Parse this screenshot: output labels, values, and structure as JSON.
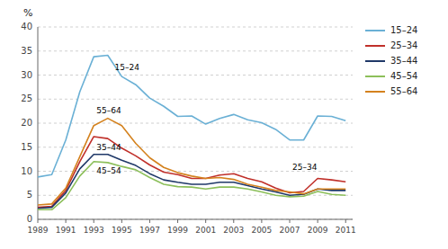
{
  "chart_data": {
    "type": "line",
    "y_label": "%",
    "x": [
      1989,
      1990,
      1991,
      1992,
      1993,
      1994,
      1995,
      1996,
      1997,
      1998,
      1999,
      2000,
      2001,
      2002,
      2003,
      2004,
      2005,
      2006,
      2007,
      2008,
      2009,
      2010,
      2011
    ],
    "series": [
      {
        "name": "15–24",
        "color": "#6ab0d5",
        "values": [
          8.8,
          9.3,
          16.5,
          26.5,
          33.8,
          34.1,
          29.7,
          28.0,
          25.2,
          23.5,
          21.4,
          21.5,
          19.8,
          21.0,
          21.8,
          20.7,
          20.1,
          18.7,
          16.5,
          16.5,
          21.5,
          21.4,
          20.5
        ]
      },
      {
        "name": "25–34",
        "color": "#c0302a",
        "values": [
          2.5,
          2.7,
          6.0,
          12.0,
          17.2,
          16.8,
          14.8,
          13.2,
          11.3,
          9.8,
          9.3,
          8.5,
          8.5,
          9.2,
          9.5,
          8.5,
          7.8,
          6.5,
          5.5,
          5.8,
          8.5,
          8.2,
          7.8
        ]
      },
      {
        "name": "35–44",
        "color": "#1f3868",
        "values": [
          2.3,
          2.5,
          5.5,
          10.5,
          13.5,
          13.5,
          12.3,
          11.2,
          9.5,
          8.2,
          7.7,
          7.3,
          7.3,
          7.7,
          7.7,
          7.0,
          6.3,
          5.7,
          5.0,
          5.2,
          6.3,
          6.0,
          6.0
        ]
      },
      {
        "name": "45–54",
        "color": "#8cbf5a",
        "values": [
          2.0,
          2.0,
          4.5,
          9.0,
          12.0,
          11.8,
          11.0,
          10.3,
          8.7,
          7.3,
          6.8,
          6.7,
          6.3,
          6.7,
          6.7,
          6.3,
          5.7,
          5.0,
          4.7,
          4.8,
          5.8,
          5.2,
          5.0
        ]
      },
      {
        "name": "55–64",
        "color": "#d4821e",
        "values": [
          3.0,
          3.2,
          6.5,
          13.0,
          19.5,
          21.0,
          19.5,
          15.8,
          12.8,
          10.8,
          9.7,
          9.0,
          8.5,
          8.7,
          8.3,
          7.3,
          6.7,
          6.0,
          5.7,
          5.3,
          6.3,
          6.3,
          6.3
        ]
      }
    ],
    "xlim": [
      1989,
      2011.5
    ],
    "xticks": [
      1989,
      1991,
      1993,
      1995,
      1997,
      1999,
      2001,
      2003,
      2005,
      2007,
      2009,
      2011
    ],
    "ylim": [
      0,
      40
    ],
    "yticks": [
      0,
      5,
      10,
      15,
      20,
      25,
      30,
      35,
      40
    ],
    "grid": true,
    "legend": "right",
    "annotations": [
      {
        "text": "15–24",
        "x": 1994.5,
        "y": 31.5
      },
      {
        "text": "55–64",
        "x": 1993.2,
        "y": 22.5
      },
      {
        "text": "35–44",
        "x": 1993.2,
        "y": 14.8
      },
      {
        "text": "45–54",
        "x": 1993.2,
        "y": 10.0
      },
      {
        "text": "25–34",
        "x": 2007.2,
        "y": 10.8
      }
    ]
  }
}
